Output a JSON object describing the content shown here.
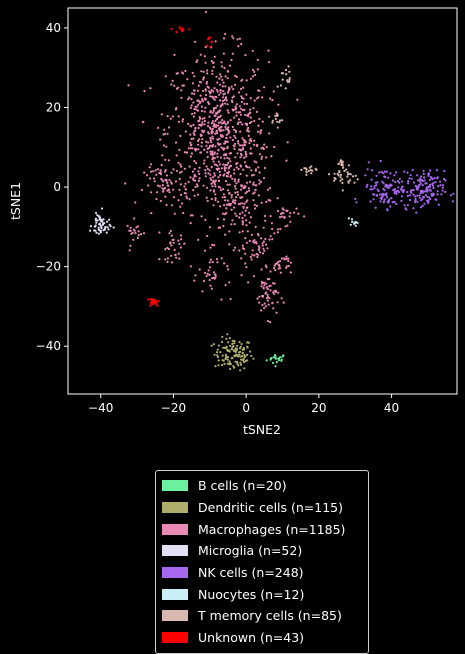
{
  "chart_data": {
    "type": "scatter",
    "xlabel": "tSNE2",
    "ylabel": "tSNE1",
    "xlim": [
      -49,
      58
    ],
    "ylim": [
      -52,
      45
    ],
    "xticks": [
      -40,
      -20,
      0,
      20,
      40
    ],
    "yticks": [
      -40,
      -20,
      0,
      20,
      40
    ],
    "legend_position": "below",
    "series": [
      {
        "name": "B cells (n=20)",
        "color": "#6bf0a0",
        "n": 20,
        "clusters": [
          {
            "cx": 8.5,
            "cy": -43.2,
            "sx": 1.4,
            "sy": 0.7,
            "n": 20
          }
        ]
      },
      {
        "name": "Dendritic cells (n=115)",
        "color": "#b0ad6c",
        "n": 115,
        "clusters": [
          {
            "cx": -3.5,
            "cy": -42.0,
            "sx": 2.6,
            "sy": 2.0,
            "n": 115
          }
        ]
      },
      {
        "name": "Macrophages (n=1185)",
        "color": "#e889b6",
        "n": 1185,
        "clusters": [
          {
            "cx": -8.0,
            "cy": 14.0,
            "sx": 7.0,
            "sy": 10.0,
            "n": 720
          },
          {
            "cx": -2.0,
            "cy": -3.0,
            "sx": 5.0,
            "sy": 8.0,
            "n": 180
          },
          {
            "cx": -22.0,
            "cy": 0.5,
            "sx": 3.0,
            "sy": 2.5,
            "n": 60
          },
          {
            "cx": -20.0,
            "cy": -15.0,
            "sx": 1.8,
            "sy": 1.8,
            "n": 30
          },
          {
            "cx": -30.5,
            "cy": -11.5,
            "sx": 1.2,
            "sy": 1.5,
            "n": 20
          },
          {
            "cx": 11.0,
            "cy": -7.0,
            "sx": 1.8,
            "sy": 1.2,
            "n": 25
          },
          {
            "cx": 9.5,
            "cy": -19.5,
            "sx": 1.4,
            "sy": 1.4,
            "n": 25
          },
          {
            "cx": 6.0,
            "cy": -27.0,
            "sx": 1.6,
            "sy": 2.8,
            "n": 55
          },
          {
            "cx": -9.0,
            "cy": -22.0,
            "sx": 2.0,
            "sy": 2.5,
            "n": 30
          },
          {
            "cx": 3.0,
            "cy": -16.0,
            "sx": 2.5,
            "sy": 3.0,
            "n": 40
          }
        ]
      },
      {
        "name": "Microglia (n=52)",
        "color": "#e2dff5",
        "n": 52,
        "clusters": [
          {
            "cx": -40.0,
            "cy": -9.5,
            "sx": 1.2,
            "sy": 1.6,
            "n": 52
          }
        ]
      },
      {
        "name": "NK cells (n=248)",
        "color": "#a668ee",
        "n": 248,
        "clusters": [
          {
            "cx": 38.5,
            "cy": 0.0,
            "sx": 3.2,
            "sy": 2.5,
            "n": 110
          },
          {
            "cx": 48.5,
            "cy": -1.0,
            "sx": 3.0,
            "sy": 2.5,
            "n": 138
          }
        ]
      },
      {
        "name": "Nuocytes (n=12)",
        "color": "#c9eef6",
        "n": 12,
        "clusters": [
          {
            "cx": 29.5,
            "cy": -8.8,
            "sx": 0.5,
            "sy": 0.5,
            "n": 12
          }
        ]
      },
      {
        "name": "T memory cells (n=85)",
        "color": "#d8b8b0",
        "n": 85,
        "clusters": [
          {
            "cx": 11.0,
            "cy": 27.5,
            "sx": 0.7,
            "sy": 1.5,
            "n": 15
          },
          {
            "cx": 8.5,
            "cy": 17.0,
            "sx": 0.8,
            "sy": 0.8,
            "n": 10
          },
          {
            "cx": 17.0,
            "cy": 4.5,
            "sx": 1.2,
            "sy": 0.6,
            "n": 15
          },
          {
            "cx": 27.5,
            "cy": 2.5,
            "sx": 1.8,
            "sy": 1.4,
            "n": 30
          },
          {
            "cx": 26.0,
            "cy": 6.0,
            "sx": 0.6,
            "sy": 0.6,
            "n": 15
          }
        ]
      },
      {
        "name": "Unknown (n=43)",
        "color": "#ff0000",
        "n": 43,
        "clusters": [
          {
            "cx": -25.5,
            "cy": -28.8,
            "sx": 0.8,
            "sy": 0.6,
            "n": 25
          },
          {
            "cx": -17.5,
            "cy": 39.5,
            "sx": 1.5,
            "sy": 0.4,
            "n": 10
          },
          {
            "cx": -10.0,
            "cy": 37.3,
            "sx": 0.4,
            "sy": 0.8,
            "n": 8
          }
        ]
      }
    ]
  }
}
